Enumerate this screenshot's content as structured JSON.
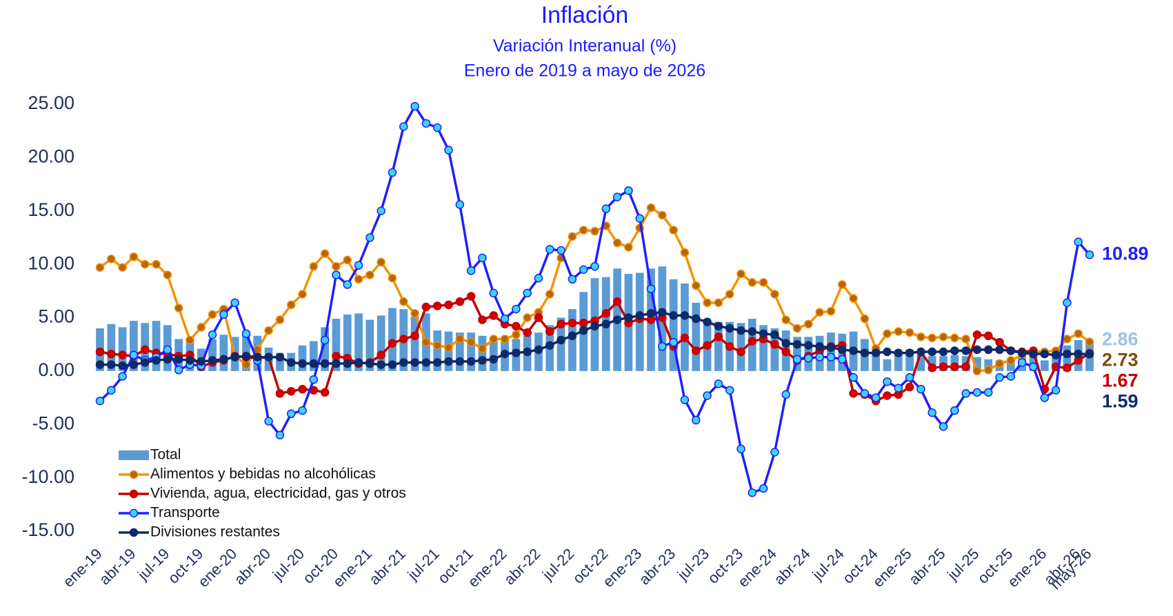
{
  "chart_data": {
    "type": "line",
    "title": "Inflación",
    "subtitle": "Variación Interanual (%)",
    "subtitle2": "Enero de 2019 a mayo de 2026",
    "categories": [
      "ene-19",
      null,
      null,
      "abr-19",
      null,
      null,
      "jul-19",
      null,
      null,
      "oct-19",
      null,
      null,
      "ene-20",
      null,
      null,
      "abr-20",
      null,
      null,
      "jul-20",
      null,
      null,
      "oct-20",
      null,
      null,
      "ene-21",
      null,
      null,
      "abr-21",
      null,
      null,
      "jul-21",
      null,
      null,
      "oct-21",
      null,
      null,
      "ene-22",
      null,
      null,
      "abr-22",
      null,
      null,
      "jul-22",
      null,
      null,
      "oct-22",
      null,
      null,
      "ene-23",
      null,
      null,
      "abr-23",
      null,
      null,
      "jul-23",
      null,
      null,
      "oct-23",
      null,
      null,
      "ene-24",
      null,
      null,
      "abr-24",
      null,
      null,
      "jul-24",
      null,
      null,
      "oct-24",
      null,
      null,
      "ene-25",
      null,
      null,
      "abr-25",
      null,
      null,
      "jul-25",
      null,
      null,
      "oct-25",
      null,
      null,
      "ene-26",
      null,
      null,
      "abr-26",
      "may-26"
    ],
    "ylim": [
      -15,
      25
    ],
    "yticks": [
      {
        "value": -15,
        "label": "-15.00"
      },
      {
        "value": -10,
        "label": "-10.00"
      },
      {
        "value": -5,
        "label": "-5.00"
      },
      {
        "value": 0,
        "label": "0.00"
      },
      {
        "value": 5,
        "label": "5.00"
      },
      {
        "value": 10,
        "label": "10.00"
      },
      {
        "value": 15,
        "label": "15.00"
      },
      {
        "value": 20,
        "label": "20.00"
      },
      {
        "value": 25,
        "label": "25.00"
      }
    ],
    "grid": false,
    "legend": "lower-left",
    "series": [
      {
        "name": "Total",
        "type": "bar",
        "color": "#5b9bd5",
        "label_color": "#9dc3e6",
        "values": [
          4.0,
          4.4,
          4.1,
          4.7,
          4.5,
          4.7,
          4.3,
          3.0,
          3.0,
          2.1,
          3.0,
          3.4,
          3.2,
          3.7,
          3.3,
          2.2,
          1.7,
          1.7,
          2.4,
          2.8,
          4.1,
          4.9,
          5.3,
          5.4,
          4.8,
          5.2,
          5.9,
          5.8,
          5.1,
          5.4,
          3.8,
          3.7,
          3.6,
          3.6,
          3.3,
          2.8,
          2.9,
          3.0,
          3.3,
          3.6,
          4.3,
          5.0,
          5.8,
          7.4,
          8.7,
          8.8,
          9.6,
          9.1,
          9.2,
          9.6,
          9.8,
          8.6,
          8.2,
          6.4,
          4.8,
          4.6,
          4.6,
          4.5,
          4.9,
          4.3,
          4.0,
          3.8,
          3.2,
          3.2,
          3.3,
          3.6,
          3.5,
          3.7,
          3.0,
          2.3,
          1.1,
          1.7,
          2.0,
          1.5,
          1.4,
          1.4,
          1.5,
          1.4,
          1.3,
          1.1,
          1.0,
          1.2,
          1.5,
          1.6,
          1.0,
          1.5,
          2.4,
          2.9,
          2.86
        ]
      },
      {
        "name": "Alimentos y bebidas no alcohólicas",
        "type": "line",
        "color": "#f39200",
        "marker_color": "#b8650f",
        "label_color": "#7f4a0c",
        "values": [
          9.7,
          10.5,
          9.7,
          10.7,
          10.0,
          10.0,
          9.0,
          5.9,
          2.9,
          4.1,
          5.3,
          5.8,
          1.4,
          0.6,
          2.0,
          3.8,
          4.8,
          6.2,
          7.2,
          9.8,
          11.0,
          9.8,
          10.4,
          8.6,
          9.0,
          10.2,
          8.7,
          6.5,
          5.4,
          2.7,
          2.4,
          2.2,
          3.0,
          2.7,
          2.1,
          3.0,
          3.0,
          3.4,
          5.0,
          5.5,
          7.2,
          10.6,
          12.6,
          13.2,
          13.1,
          13.6,
          12.0,
          11.6,
          13.4,
          15.3,
          14.6,
          13.2,
          11.1,
          8.0,
          6.4,
          6.4,
          7.2,
          9.1,
          8.3,
          8.3,
          7.2,
          4.8,
          4.0,
          4.4,
          5.5,
          5.6,
          8.1,
          6.8,
          4.9,
          2.1,
          3.5,
          3.7,
          3.6,
          3.2,
          3.1,
          3.2,
          3.1,
          3.0,
          0.0,
          0.1,
          0.7,
          1.0,
          1.5,
          1.8,
          1.8,
          1.9,
          3.0,
          3.5,
          2.73
        ]
      },
      {
        "name": "Vivienda, agua, electricidad, gas y otros",
        "type": "line",
        "color": "#c00000",
        "marker_color": "#d40000",
        "label_color": "#c00000",
        "values": [
          1.8,
          1.6,
          1.5,
          1.4,
          2.0,
          1.7,
          1.6,
          1.4,
          1.5,
          0.4,
          0.8,
          1.0,
          1.4,
          1.3,
          1.2,
          1.3,
          -2.1,
          -1.9,
          -1.7,
          -1.8,
          -2.0,
          1.4,
          1.2,
          0.7,
          0.8,
          1.5,
          2.6,
          3.0,
          3.3,
          6.0,
          6.1,
          6.2,
          6.5,
          7.0,
          4.8,
          5.2,
          4.4,
          4.2,
          3.6,
          5.0,
          3.7,
          4.4,
          4.5,
          4.5,
          4.7,
          5.4,
          6.5,
          4.5,
          4.9,
          4.8,
          5.0,
          2.3,
          3.1,
          1.9,
          2.4,
          3.2,
          2.3,
          1.8,
          2.8,
          3.0,
          2.5,
          1.8,
          1.0,
          1.4,
          1.9,
          2.3,
          2.4,
          -2.1,
          -2.2,
          -2.8,
          -2.3,
          -2.2,
          -1.5,
          1.8,
          0.3,
          0.4,
          0.4,
          0.4,
          3.4,
          3.3,
          2.7,
          1.9,
          1.8,
          1.9,
          -1.7,
          0.4,
          0.3,
          1.0,
          1.67
        ]
      },
      {
        "name": "Transporte",
        "type": "line",
        "color": "#1f1fff",
        "marker_color": "#3fd3f2",
        "label_color": "#1f1fff",
        "values": [
          -2.8,
          -1.8,
          -0.5,
          1.5,
          1.0,
          1.3,
          2.0,
          0.1,
          0.6,
          0.5,
          3.4,
          5.3,
          6.4,
          3.5,
          1.0,
          -4.7,
          -6.0,
          -4.0,
          -3.7,
          -0.8,
          2.9,
          9.0,
          8.1,
          9.9,
          12.5,
          15.0,
          18.6,
          22.9,
          24.8,
          23.2,
          22.8,
          20.7,
          15.6,
          9.4,
          10.6,
          7.3,
          4.9,
          5.8,
          7.3,
          8.7,
          11.4,
          11.3,
          8.6,
          9.5,
          9.8,
          15.2,
          16.3,
          16.9,
          14.3,
          7.7,
          2.3,
          2.7,
          -2.7,
          -4.6,
          -2.3,
          -1.2,
          -1.8,
          -7.3,
          -11.4,
          -11.0,
          -7.6,
          -2.2,
          1.1,
          1.2,
          1.3,
          1.3,
          1.1,
          -0.6,
          -2.1,
          -2.5,
          -1.0,
          -1.6,
          -0.6,
          -1.7,
          -3.9,
          -5.2,
          -3.7,
          -2.1,
          -2.0,
          -2.0,
          -0.6,
          -0.5,
          0.8,
          0.4,
          -2.5,
          -1.8,
          6.4,
          12.1,
          10.89
        ]
      },
      {
        "name": "Divisiones restantes",
        "type": "line",
        "color": "#0d2a6b",
        "marker_color": "#0d2a6b",
        "label_color": "#0d2a6b",
        "values": [
          0.6,
          0.6,
          0.5,
          0.6,
          0.8,
          1.0,
          1.1,
          1.1,
          1.0,
          0.9,
          1.0,
          1.1,
          1.3,
          1.4,
          1.3,
          1.3,
          1.3,
          0.8,
          0.7,
          0.7,
          0.7,
          0.7,
          0.7,
          0.8,
          0.7,
          0.6,
          0.6,
          0.8,
          0.8,
          0.8,
          0.8,
          0.9,
          0.9,
          0.9,
          1.0,
          1.1,
          1.6,
          1.7,
          1.8,
          2.0,
          2.4,
          2.9,
          3.3,
          3.8,
          4.2,
          4.4,
          4.8,
          5.0,
          5.2,
          5.4,
          5.5,
          5.2,
          5.2,
          4.9,
          4.6,
          4.2,
          4.0,
          3.8,
          3.7,
          3.5,
          3.4,
          2.6,
          2.5,
          2.4,
          2.3,
          2.2,
          2.0,
          1.9,
          1.7,
          1.7,
          1.8,
          1.7,
          1.7,
          1.8,
          1.8,
          1.8,
          1.9,
          1.9,
          2.0,
          2.0,
          2.0,
          1.9,
          1.7,
          1.6,
          1.6,
          1.5,
          1.6,
          1.6,
          1.59
        ]
      }
    ]
  }
}
